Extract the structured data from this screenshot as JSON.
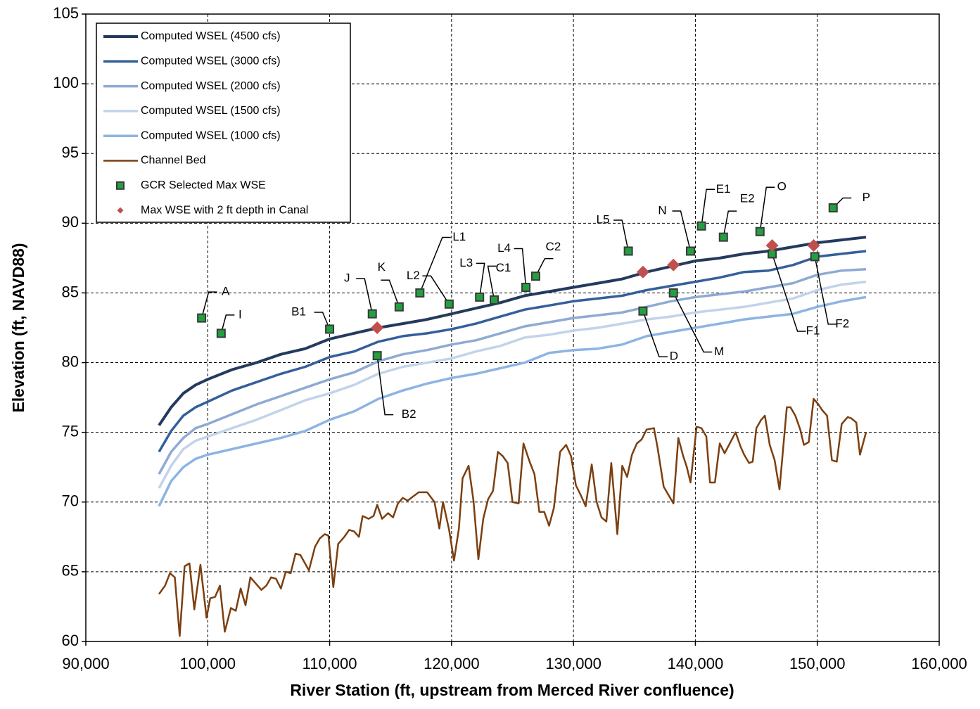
{
  "chart_data": {
    "type": "line",
    "xlabel": "River Station (ft, upstream from Merced River confluence)",
    "ylabel": "Elevation (ft, NAVD88)",
    "xlim": [
      90000,
      160000
    ],
    "xticks": [
      {
        "value": 90000,
        "label": "90,000"
      },
      {
        "value": 100000,
        "label": "100,000"
      },
      {
        "value": 110000,
        "label": "110,000"
      },
      {
        "value": 120000,
        "label": "120,000"
      },
      {
        "value": 130000,
        "label": "130,000"
      },
      {
        "value": 140000,
        "label": "140,000"
      },
      {
        "value": 150000,
        "label": "150,000"
      },
      {
        "value": 160000,
        "label": "160,000"
      }
    ],
    "ylim": [
      60,
      105
    ],
    "yticks": [
      60,
      65,
      70,
      75,
      80,
      85,
      90,
      95,
      100,
      105
    ],
    "grid": true,
    "legend": "upper left",
    "x": [
      96000,
      97000,
      98000,
      99000,
      100000,
      102000,
      104000,
      106000,
      108000,
      110000,
      112000,
      114000,
      116000,
      118000,
      120000,
      122000,
      124000,
      126000,
      128000,
      130000,
      132000,
      134000,
      136000,
      138000,
      140000,
      142000,
      144000,
      146000,
      148000,
      150000,
      152000,
      154000
    ],
    "series": [
      {
        "name": "Computed WSEL (4500 cfs)",
        "color": "#243a5e",
        "width": 4,
        "values": [
          75.5,
          76.8,
          77.8,
          78.4,
          78.8,
          79.5,
          80.0,
          80.6,
          81.0,
          81.7,
          82.1,
          82.5,
          82.8,
          83.1,
          83.5,
          83.9,
          84.3,
          84.8,
          85.1,
          85.4,
          85.7,
          86.0,
          86.5,
          86.9,
          87.3,
          87.5,
          87.8,
          88.0,
          88.3,
          88.6,
          88.8,
          89.0
        ]
      },
      {
        "name": "Computed WSEL (3000 cfs)",
        "color": "#34609a",
        "width": 3.5,
        "values": [
          73.6,
          75.1,
          76.2,
          76.8,
          77.2,
          78.0,
          78.6,
          79.2,
          79.7,
          80.4,
          80.8,
          81.5,
          81.9,
          82.1,
          82.4,
          82.8,
          83.3,
          83.8,
          84.1,
          84.4,
          84.6,
          84.8,
          85.2,
          85.5,
          85.8,
          86.1,
          86.5,
          86.6,
          87.0,
          87.6,
          87.8,
          88.0
        ]
      },
      {
        "name": "Computed WSEL (2000 cfs)",
        "color": "#8eaad4",
        "width": 3.5,
        "values": [
          72.0,
          73.6,
          74.6,
          75.3,
          75.6,
          76.3,
          77.0,
          77.6,
          78.2,
          78.8,
          79.3,
          80.1,
          80.6,
          80.9,
          81.3,
          81.6,
          82.1,
          82.6,
          82.9,
          83.2,
          83.4,
          83.6,
          84.0,
          84.4,
          84.7,
          84.9,
          85.1,
          85.4,
          85.7,
          86.3,
          86.6,
          86.7
        ]
      },
      {
        "name": "Computed WSEL (1500 cfs)",
        "color": "#c3d3ea",
        "width": 3.5,
        "values": [
          71.0,
          72.6,
          73.8,
          74.4,
          74.7,
          75.3,
          75.9,
          76.6,
          77.3,
          77.8,
          78.4,
          79.2,
          79.7,
          80.0,
          80.3,
          80.8,
          81.2,
          81.8,
          82.0,
          82.3,
          82.5,
          82.8,
          83.1,
          83.3,
          83.6,
          83.8,
          84.0,
          84.3,
          84.6,
          85.2,
          85.6,
          85.8
        ]
      },
      {
        "name": "Computed WSEL (1000 cfs)",
        "color": "#8db4e2",
        "width": 3.5,
        "values": [
          69.7,
          71.5,
          72.5,
          73.1,
          73.4,
          73.8,
          74.2,
          74.6,
          75.1,
          75.9,
          76.5,
          77.4,
          78.0,
          78.5,
          78.9,
          79.2,
          79.6,
          80.0,
          80.7,
          80.9,
          81.0,
          81.3,
          81.9,
          82.2,
          82.5,
          82.8,
          83.1,
          83.3,
          83.5,
          84.0,
          84.4,
          84.7
        ]
      },
      {
        "name": "Channel Bed",
        "color": "#7b3f10",
        "width": 2.5,
        "x": [
          96000,
          96500,
          96900,
          97300,
          97700,
          98100,
          98500,
          98900,
          99400,
          99900,
          100200,
          100600,
          101000,
          101400,
          101900,
          102300,
          102700,
          103100,
          103500,
          104400,
          104800,
          105200,
          105600,
          106000,
          106400,
          106800,
          107200,
          107600,
          108300,
          108800,
          109200,
          109600,
          109900,
          110300,
          110700,
          111200,
          111600,
          112000,
          112400,
          112700,
          113200,
          113600,
          113900,
          114300,
          114800,
          115200,
          115600,
          116000,
          116400,
          117300,
          118000,
          118600,
          119000,
          119300,
          119800,
          120200,
          120600,
          120900,
          121400,
          121800,
          122200,
          122600,
          123000,
          123400,
          123800,
          124200,
          124600,
          125000,
          125500,
          125900,
          126400,
          126800,
          127200,
          127600,
          128000,
          128400,
          128900,
          129400,
          129800,
          130200,
          130600,
          131000,
          131500,
          131900,
          132300,
          132700,
          133100,
          133600,
          134000,
          134400,
          134800,
          135200,
          135600,
          136000,
          136600,
          136900,
          137400,
          137800,
          138200,
          138600,
          139000,
          139300,
          139600,
          140100,
          140500,
          140900,
          141200,
          141600,
          142000,
          142400,
          143300,
          143700,
          144000,
          144400,
          144700,
          145000,
          145400,
          145700,
          146100,
          146500,
          146900,
          147500,
          147800,
          148200,
          148600,
          148900,
          149300,
          149700,
          150100,
          150400,
          150800,
          151200,
          151600,
          152000,
          152500,
          152800,
          153200,
          153500,
          154000
        ],
        "values": [
          63.4,
          64.0,
          64.9,
          64.6,
          60.4,
          65.4,
          65.6,
          62.3,
          65.5,
          61.7,
          63.1,
          63.2,
          64.0,
          60.7,
          62.4,
          62.2,
          63.8,
          62.6,
          64.6,
          63.7,
          64.0,
          64.6,
          64.5,
          63.8,
          65.0,
          64.9,
          66.3,
          66.2,
          65.1,
          66.8,
          67.4,
          67.7,
          67.6,
          63.9,
          67.0,
          67.5,
          68.0,
          67.9,
          67.5,
          69.0,
          68.8,
          69.0,
          69.8,
          68.8,
          69.2,
          68.9,
          69.9,
          70.3,
          70.1,
          70.7,
          70.7,
          70.0,
          68.1,
          70.0,
          68.0,
          65.8,
          68.1,
          71.7,
          72.6,
          70.1,
          65.9,
          68.8,
          70.2,
          70.8,
          73.6,
          73.3,
          72.8,
          70.0,
          69.9,
          74.2,
          72.9,
          72.0,
          69.3,
          69.3,
          68.3,
          69.6,
          73.6,
          74.1,
          73.3,
          71.2,
          70.5,
          69.7,
          72.7,
          70.0,
          68.9,
          68.6,
          72.8,
          67.7,
          72.6,
          71.8,
          73.4,
          74.2,
          74.5,
          75.2,
          75.3,
          73.9,
          71.1,
          70.5,
          69.9,
          74.6,
          73.3,
          72.5,
          71.4,
          75.4,
          75.3,
          74.7,
          71.4,
          71.4,
          74.2,
          73.5,
          75.0,
          74.0,
          73.4,
          72.8,
          72.9,
          75.3,
          75.9,
          76.2,
          74.1,
          73.0,
          70.9,
          76.8,
          76.8,
          76.2,
          75.2,
          74.1,
          74.3,
          77.4,
          77.0,
          76.6,
          76.2,
          73.0,
          72.9,
          75.6,
          76.1,
          76.0,
          75.7,
          73.4,
          75.0
        ]
      },
      {
        "name": "GCR Selected Max WSE",
        "type": "scatter",
        "marker": "square",
        "color": "#22a040",
        "x": [
          99500,
          101100,
          110000,
          113500,
          113900,
          115700,
          117400,
          119800,
          122300,
          123500,
          126100,
          126900,
          134500,
          135700,
          138200,
          139600,
          140500,
          142300,
          145300,
          146300,
          149800,
          151300
        ],
        "values": [
          83.2,
          82.1,
          82.4,
          83.5,
          80.5,
          84.0,
          85.0,
          84.2,
          84.7,
          84.5,
          85.4,
          86.2,
          88.0,
          83.7,
          85.0,
          88.0,
          89.8,
          89.0,
          89.4,
          87.8,
          87.6,
          91.1
        ],
        "labels": [
          "A",
          "I",
          "B1",
          "J",
          "B2",
          "K",
          "L1",
          "L2",
          "L3",
          "C1",
          "L4",
          "C2",
          "L5",
          "D",
          "M",
          "N",
          "E1",
          "E2",
          "O",
          "F1",
          "F2",
          "P"
        ]
      },
      {
        "name": "Max WSE with 2 ft depth in Canal",
        "type": "scatter",
        "marker": "diamond",
        "color": "#c0504d",
        "x": [
          113900,
          135700,
          138200,
          146300,
          149700
        ],
        "values": [
          82.5,
          86.5,
          87.0,
          88.4,
          88.4
        ]
      }
    ]
  }
}
